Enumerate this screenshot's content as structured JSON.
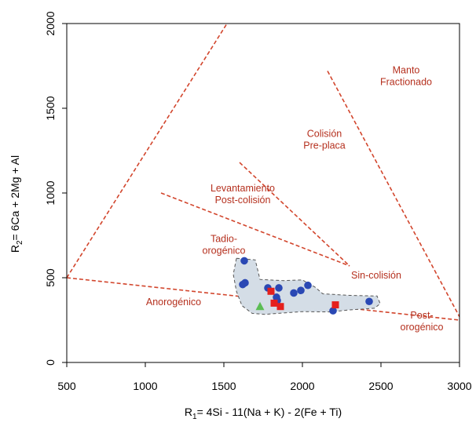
{
  "chart_data": {
    "type": "scatter",
    "title": "",
    "xlabel": {
      "pre": "R",
      "sub": "1",
      "post": "= 4Si - 11(Na + K) - 2(Fe + Ti)"
    },
    "ylabel": {
      "pre": "R",
      "sub": "2",
      "post": "= 6Ca + 2Mg + Al"
    },
    "xlim": [
      500,
      3000
    ],
    "ylim": [
      0,
      2000
    ],
    "x_ticks": [
      500,
      1000,
      1500,
      2000,
      2500,
      3000
    ],
    "y_ticks": [
      0,
      500,
      1000,
      1500,
      2000
    ],
    "grid": false,
    "colors": {
      "lines": "#d2452c",
      "region_text": "#b5301e",
      "blue": "#2a48b4",
      "red": "#e5201c",
      "green": "#5bbd54",
      "field_fill": "#d4dde6",
      "field_stroke": "#555555"
    },
    "boundary_lines": [
      {
        "points": [
          [
            500,
            500
          ],
          [
            1520,
            2000
          ]
        ]
      },
      {
        "points": [
          [
            500,
            500
          ],
          [
            3000,
            250
          ]
        ]
      },
      {
        "points": [
          [
            1100,
            1000
          ],
          [
            2300,
            570
          ]
        ]
      },
      {
        "points": [
          [
            1600,
            1180
          ],
          [
            2300,
            570
          ]
        ]
      },
      {
        "points": [
          [
            2160,
            1720
          ],
          [
            3000,
            270
          ]
        ]
      }
    ],
    "region_labels": [
      {
        "lines": [
          "Manto",
          "Fractionado"
        ],
        "x": 2660,
        "y": 1705
      },
      {
        "lines": [
          "Colisión",
          "Pre-placa"
        ],
        "x": 2140,
        "y": 1330
      },
      {
        "lines": [
          "Levantamiento",
          "Post-colisión"
        ],
        "x": 1620,
        "y": 1010
      },
      {
        "lines": [
          "Tadio-",
          "orogénico"
        ],
        "x": 1500,
        "y": 710
      },
      {
        "lines": [
          "Sin-colisión"
        ],
        "x": 2470,
        "y": 495
      },
      {
        "lines": [
          "Anorogénico"
        ],
        "x": 1180,
        "y": 338
      },
      {
        "lines": [
          "Post-",
          "orogénico"
        ],
        "x": 2760,
        "y": 260
      }
    ],
    "field_outline": [
      [
        1580,
        615
      ],
      [
        1700,
        605
      ],
      [
        1730,
        490
      ],
      [
        1880,
        483
      ],
      [
        2000,
        487
      ],
      [
        2080,
        445
      ],
      [
        2130,
        405
      ],
      [
        2300,
        396
      ],
      [
        2475,
        392
      ],
      [
        2495,
        347
      ],
      [
        2460,
        320
      ],
      [
        2300,
        310
      ],
      [
        2180,
        298
      ],
      [
        2000,
        300
      ],
      [
        1880,
        292
      ],
      [
        1760,
        284
      ],
      [
        1680,
        290
      ],
      [
        1615,
        335
      ],
      [
        1580,
        420
      ],
      [
        1560,
        520
      ]
    ],
    "series": [
      {
        "marker": "circle",
        "color": "#2a48b4",
        "x": [
          1630,
          1620,
          1635,
          1780,
          1850,
          1835,
          1840,
          1945,
          1990,
          2035,
          2425,
          2195
        ],
        "y": [
          600,
          460,
          470,
          440,
          440,
          385,
          365,
          410,
          425,
          455,
          360,
          305
        ]
      },
      {
        "marker": "square",
        "color": "#e5201c",
        "x": [
          1800,
          1820,
          1860,
          2210
        ],
        "y": [
          420,
          350,
          330,
          340
        ]
      },
      {
        "marker": "triangle",
        "color": "#5bbd54",
        "x": [
          1730
        ],
        "y": [
          330
        ]
      }
    ]
  }
}
